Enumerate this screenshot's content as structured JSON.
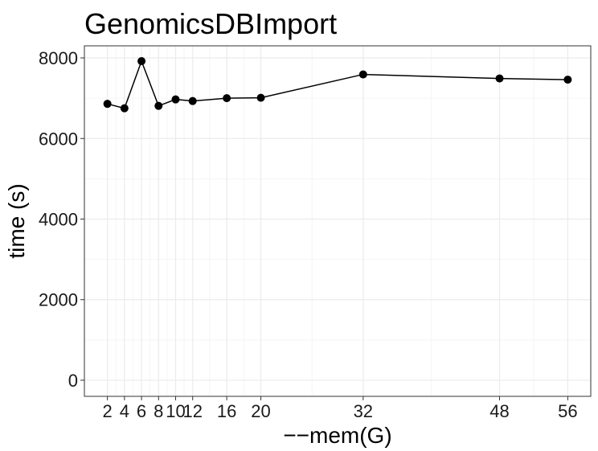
{
  "chart_data": {
    "type": "line",
    "title": "GenomicsDBImport",
    "xlabel": "−−mem(G)",
    "ylabel": "time (s)",
    "x": [
      2,
      4,
      6,
      8,
      10,
      12,
      16,
      20,
      32,
      48,
      56
    ],
    "y": [
      6860,
      6750,
      7920,
      6810,
      6970,
      6930,
      7000,
      7010,
      7590,
      7490,
      7460
    ],
    "x_ticks": [
      2,
      4,
      6,
      8,
      10,
      12,
      16,
      20,
      32,
      48,
      56
    ],
    "x_tick_labels": [
      "2",
      "4",
      "6",
      "8",
      "10",
      "12",
      "16",
      "20",
      "32",
      "48",
      "56"
    ],
    "y_ticks": [
      0,
      2000,
      4000,
      6000,
      8000
    ],
    "y_tick_labels": [
      "0",
      "2000",
      "4000",
      "6000",
      "8000"
    ],
    "xlim": [
      -0.7,
      58.7
    ],
    "ylim": [
      -400,
      8300
    ],
    "grid": true,
    "colors": {
      "line": "#000000",
      "point": "#000000",
      "grid_major": "#ebebeb",
      "grid_minor": "#f5f5f5",
      "panel_border": "#333333"
    }
  }
}
